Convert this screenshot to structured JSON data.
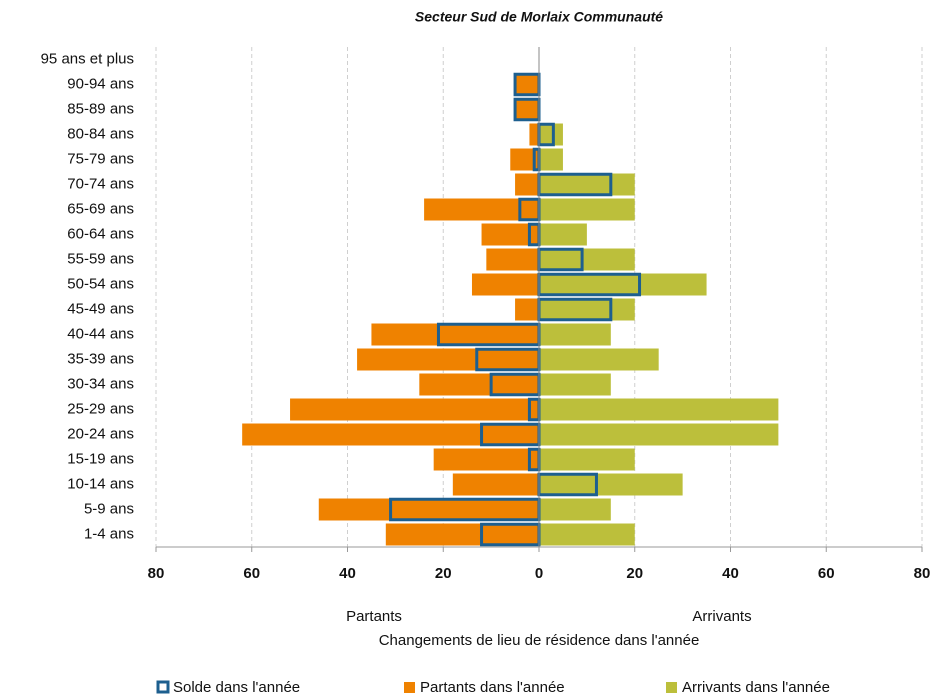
{
  "chart_data": {
    "type": "bar",
    "orientation": "horizontal",
    "title": "Secteur Sud de Morlaix Communauté",
    "xlabel": "Changements de lieu de résidence dans l'année",
    "annotations": [
      "Partants",
      "Arrivants"
    ],
    "categories": [
      "95 ans et plus",
      "90-94 ans",
      "85-89 ans",
      "80-84 ans",
      "75-79 ans",
      "70-74 ans",
      "65-69 ans",
      "60-64 ans",
      "55-59 ans",
      "50-54 ans",
      "45-49 ans",
      "40-44 ans",
      "35-39 ans",
      "30-34 ans",
      "25-29 ans",
      "20-24 ans",
      "15-19 ans",
      "10-14 ans",
      "5-9 ans",
      "1-4 ans"
    ],
    "series": [
      {
        "name": "Partants dans l'année",
        "color": "#ef8200",
        "fill": true,
        "values": [
          0,
          -5,
          -5,
          -2,
          -6,
          -5,
          -24,
          -12,
          -11,
          -14,
          -5,
          -35,
          -38,
          -25,
          -52,
          -62,
          -22,
          -18,
          -46,
          -32
        ]
      },
      {
        "name": "Arrivants dans l'année",
        "color": "#bcbf3b",
        "fill": true,
        "values": [
          0,
          0,
          0,
          5,
          5,
          20,
          20,
          10,
          20,
          35,
          20,
          15,
          25,
          15,
          50,
          50,
          20,
          30,
          15,
          20
        ]
      },
      {
        "name": "Solde dans l'année",
        "color": "#1d5f8f",
        "fill": false,
        "values": [
          0,
          -5,
          -5,
          3,
          -1,
          15,
          -4,
          -2,
          9,
          21,
          15,
          -21,
          -13,
          -10,
          -2,
          -12,
          -2,
          12,
          -31,
          -12
        ]
      }
    ],
    "legend_order": [
      2,
      0,
      1
    ],
    "xlim": [
      -80,
      80
    ],
    "xticks": [
      {
        "value": -80,
        "label": "80"
      },
      {
        "value": -60,
        "label": "60"
      },
      {
        "value": -40,
        "label": "40"
      },
      {
        "value": -20,
        "label": "20"
      },
      0,
      20,
      40,
      60,
      80
    ],
    "grid": true
  }
}
